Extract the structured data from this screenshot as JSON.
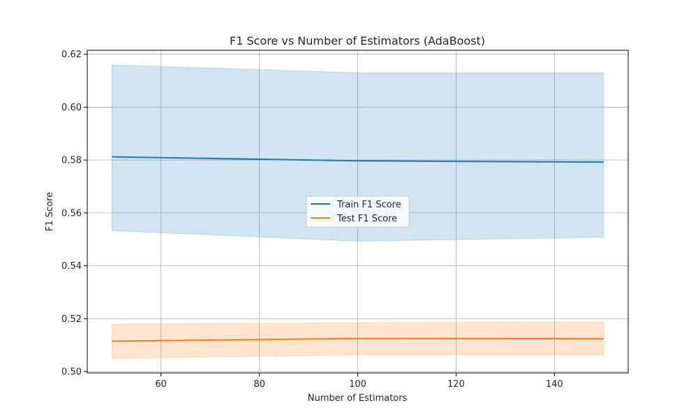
{
  "chart_data": {
    "type": "line",
    "title": "F1 Score vs Number of Estimators (AdaBoost)",
    "xlabel": "Number of Estimators",
    "ylabel": "F1 Score",
    "xlim": [
      45,
      155
    ],
    "ylim": [
      0.4995,
      0.6215
    ],
    "xticks": [
      60,
      80,
      100,
      120,
      140
    ],
    "yticks": [
      0.5,
      0.52,
      0.54,
      0.56,
      0.58,
      0.6,
      0.62
    ],
    "ytick_labels": [
      "0.50",
      "0.52",
      "0.54",
      "0.56",
      "0.58",
      "0.60",
      "0.62"
    ],
    "grid": true,
    "legend_position": "center",
    "x": [
      50,
      100,
      150
    ],
    "series": [
      {
        "name": "Train F1 Score",
        "color": "#1f77b4",
        "values": [
          0.5812,
          0.5797,
          0.5792
        ],
        "band_upper": [
          0.616,
          0.613,
          0.613
        ],
        "band_lower": [
          0.5533,
          0.5493,
          0.5508
        ]
      },
      {
        "name": "Test F1 Score",
        "color": "#ff7f0e",
        "values": [
          0.5115,
          0.5125,
          0.5124
        ],
        "band_upper": [
          0.518,
          0.5185,
          0.5187
        ],
        "band_lower": [
          0.505,
          0.5063,
          0.5063
        ]
      }
    ]
  }
}
